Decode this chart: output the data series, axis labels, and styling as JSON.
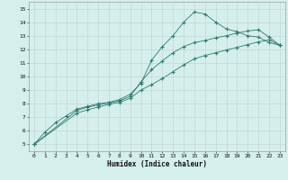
{
  "xlabel": "Humidex (Indice chaleur)",
  "xlim": [
    -0.5,
    23.5
  ],
  "ylim": [
    4.5,
    15.5
  ],
  "xticks": [
    0,
    1,
    2,
    3,
    4,
    5,
    6,
    7,
    8,
    9,
    10,
    11,
    12,
    13,
    14,
    15,
    16,
    17,
    18,
    19,
    20,
    21,
    22,
    23
  ],
  "yticks": [
    5,
    6,
    7,
    8,
    9,
    10,
    11,
    12,
    13,
    14,
    15
  ],
  "line_color": "#2d7a6e",
  "bg_color": "#d5efec",
  "grid_color": "#c4d8d5",
  "line1_x": [
    0,
    1,
    2,
    3,
    4,
    5,
    6,
    7,
    8,
    9,
    10,
    11,
    12,
    13,
    14,
    15,
    16,
    17,
    18,
    19,
    20,
    21,
    22,
    23
  ],
  "line1_y": [
    5.0,
    5.9,
    6.6,
    7.1,
    7.6,
    7.8,
    8.0,
    8.1,
    8.3,
    8.7,
    9.5,
    11.2,
    12.2,
    13.0,
    14.0,
    14.75,
    14.6,
    14.0,
    13.5,
    13.3,
    13.0,
    12.9,
    12.5,
    12.3
  ],
  "line2_x": [
    0,
    4,
    5,
    6,
    7,
    8,
    9,
    10,
    11,
    12,
    13,
    14,
    15,
    16,
    17,
    18,
    19,
    20,
    21,
    22,
    23
  ],
  "line2_y": [
    5.0,
    7.5,
    7.75,
    7.9,
    8.05,
    8.2,
    8.55,
    9.6,
    10.5,
    11.15,
    11.75,
    12.2,
    12.5,
    12.65,
    12.85,
    13.0,
    13.2,
    13.35,
    13.45,
    12.9,
    12.3
  ],
  "line3_x": [
    0,
    4,
    5,
    6,
    7,
    8,
    9,
    10,
    11,
    12,
    13,
    14,
    15,
    16,
    17,
    18,
    19,
    20,
    21,
    22,
    23
  ],
  "line3_y": [
    5.0,
    7.3,
    7.55,
    7.75,
    7.95,
    8.1,
    8.4,
    9.0,
    9.4,
    9.85,
    10.35,
    10.85,
    11.3,
    11.55,
    11.75,
    11.95,
    12.15,
    12.35,
    12.55,
    12.7,
    12.3
  ]
}
